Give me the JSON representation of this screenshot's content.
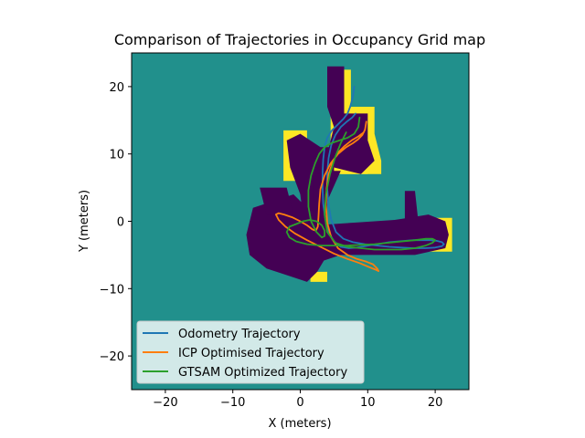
{
  "chart_data": {
    "type": "line",
    "title": "Comparison of Trajectories in Occupancy Grid map",
    "xlabel": "X (meters)",
    "ylabel": "Y (meters)",
    "xlim": [
      -25,
      25
    ],
    "ylim": [
      -25,
      25
    ],
    "xticks": [
      -20,
      -10,
      0,
      10,
      20
    ],
    "yticks": [
      -20,
      -10,
      0,
      10,
      20
    ],
    "xtick_labels": [
      "−20",
      "−10",
      "0",
      "10",
      "20"
    ],
    "ytick_labels": [
      "−20",
      "−10",
      "0",
      "10",
      "20"
    ],
    "grid": false,
    "legend_position": "lower-left",
    "background": {
      "type": "occupancy_grid",
      "unknown_color": "#21908c",
      "free_color": "#440154",
      "occupied_color": "#fde725"
    },
    "series": [
      {
        "name": "Odometry Trajectory",
        "color": "#1f77b4",
        "x": [
          8.0,
          7.8,
          7.4,
          7.0,
          6.4,
          5.6,
          4.7,
          4.0,
          3.6,
          3.4,
          3.3,
          3.3,
          3.4,
          3.7,
          4.2,
          5.0,
          6.0,
          7.2,
          8.4,
          9.6,
          10.8,
          12.0,
          13.2,
          14.4,
          15.6,
          16.8,
          18.0,
          19.2,
          20.2,
          21.0,
          21.3,
          21.0,
          20.0,
          18.5,
          16.8,
          15.0,
          13.2,
          11.4,
          9.6,
          7.8,
          6.4,
          5.3,
          4.6,
          4.2,
          4.0,
          4.0,
          4.2,
          4.6,
          5.2,
          6.0,
          6.9,
          7.7,
          8.2
        ],
        "y": [
          20.0,
          18.5,
          17.0,
          16.0,
          15.2,
          14.4,
          13.5,
          12.4,
          11.0,
          9.2,
          7.2,
          5.0,
          2.6,
          0.4,
          -1.6,
          -3.0,
          -3.8,
          -4.0,
          -3.9,
          -3.7,
          -3.5,
          -3.3,
          -3.1,
          -3.0,
          -2.9,
          -2.8,
          -2.8,
          -2.8,
          -2.9,
          -3.1,
          -3.4,
          -3.7,
          -3.9,
          -4.0,
          -4.0,
          -3.9,
          -3.8,
          -3.6,
          -3.4,
          -3.1,
          -2.6,
          -1.6,
          0.2,
          2.4,
          4.8,
          7.2,
          9.4,
          11.3,
          12.8,
          14.0,
          14.8,
          15.4,
          16.0
        ]
      },
      {
        "name": "ICP Optimised Trajectory",
        "color": "#ff7f0e",
        "x": [
          9.8,
          9.6,
          9.2,
          8.6,
          7.8,
          6.8,
          5.6,
          4.5,
          3.6,
          3.0,
          2.8,
          2.7,
          2.6,
          2.3,
          1.8,
          1.0,
          0.0,
          -1.2,
          -2.4,
          -3.2,
          -3.6,
          -3.2,
          -2.2,
          -0.8,
          1.0,
          3.0,
          5.0,
          7.0,
          8.8,
          10.2,
          11.2,
          11.6,
          11.4,
          10.8,
          9.8,
          8.4,
          7.0,
          5.6,
          4.6,
          4.0,
          3.8,
          3.9,
          4.2,
          4.8,
          5.6,
          6.6,
          7.6,
          8.6,
          9.4
        ],
        "y": [
          14.8,
          13.6,
          12.8,
          12.2,
          11.6,
          11.0,
          10.0,
          8.6,
          6.8,
          4.8,
          2.6,
          0.6,
          -0.8,
          -1.4,
          -1.2,
          -0.6,
          0.0,
          0.6,
          1.0,
          1.2,
          1.0,
          0.2,
          -0.8,
          -1.8,
          -2.8,
          -3.8,
          -4.8,
          -5.6,
          -6.2,
          -6.8,
          -7.2,
          -7.4,
          -7.0,
          -6.4,
          -6.0,
          -5.6,
          -5.0,
          -4.0,
          -2.4,
          -0.2,
          2.4,
          4.8,
          7.0,
          8.8,
          10.2,
          11.2,
          12.0,
          12.6,
          13.2
        ]
      },
      {
        "name": "GTSAM Optimized Trajectory",
        "color": "#2ca02c",
        "x": [
          8.8,
          8.6,
          8.0,
          7.0,
          5.8,
          4.6,
          3.6,
          2.8,
          2.2,
          1.6,
          1.2,
          1.2,
          1.6,
          2.4,
          3.2,
          3.6,
          3.6,
          3.2,
          2.4,
          1.4,
          0.4,
          -0.6,
          -1.6,
          -2.0,
          -1.6,
          -0.6,
          1.0,
          3.0,
          5.0,
          7.0,
          9.0,
          11.0,
          13.0,
          15.0,
          17.0,
          18.6,
          19.6,
          20.0,
          19.6,
          18.6,
          17.0,
          15.0,
          13.0,
          11.0,
          9.0,
          7.0,
          5.2,
          4.0,
          3.6,
          3.8,
          4.4,
          5.2,
          6.0,
          6.8
        ],
        "y": [
          15.4,
          14.0,
          13.0,
          12.4,
          12.0,
          11.6,
          11.0,
          10.0,
          8.6,
          6.8,
          4.6,
          2.2,
          0.0,
          -1.6,
          -2.4,
          -2.2,
          -1.4,
          -0.6,
          0.0,
          0.2,
          0.0,
          -0.4,
          -0.8,
          -1.6,
          -2.4,
          -3.0,
          -3.4,
          -3.6,
          -3.6,
          -3.6,
          -3.5,
          -3.4,
          -3.2,
          -3.0,
          -2.8,
          -2.6,
          -2.6,
          -2.8,
          -3.2,
          -3.6,
          -4.0,
          -4.2,
          -4.2,
          -4.2,
          -4.0,
          -3.8,
          -3.2,
          -1.6,
          1.0,
          4.0,
          7.0,
          9.6,
          11.6,
          13.2
        ]
      }
    ]
  }
}
